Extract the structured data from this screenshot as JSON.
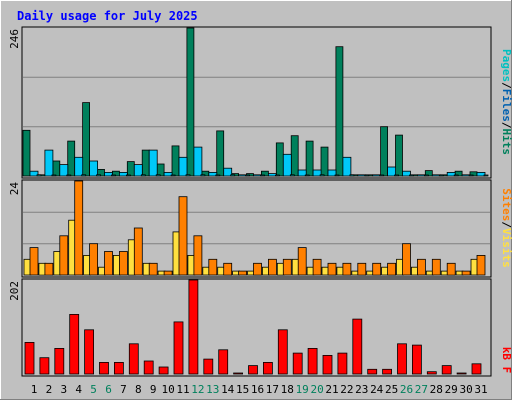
{
  "chart_data": {
    "type": "bar",
    "title": "Daily usage for July 2025",
    "categories": [
      "1",
      "2",
      "3",
      "4",
      "5",
      "6",
      "7",
      "8",
      "9",
      "10",
      "11",
      "12",
      "13",
      "14",
      "15",
      "16",
      "17",
      "18",
      "19",
      "20",
      "21",
      "22",
      "23",
      "24",
      "25",
      "26",
      "27",
      "28",
      "29",
      "30",
      "31"
    ],
    "weekend_days": [
      "5",
      "6",
      "12",
      "13",
      "19",
      "20",
      "26",
      "27"
    ],
    "panels": [
      {
        "name": "pages-files-hits",
        "ymax_label": "246",
        "ylim": [
          0,
          246
        ],
        "grid": true,
        "series": [
          {
            "name": "Hits",
            "color": "#00805c",
            "values": [
              76,
              2,
              25,
              58,
              122,
              11,
              8,
              24,
              43,
              20,
              50,
              246,
              8,
              75,
              4,
              4,
              8,
              55,
              67,
              58,
              48,
              215,
              2,
              2,
              82,
              68,
              2,
              9,
              2,
              8,
              7
            ]
          },
          {
            "name": "Files",
            "color": "#00c8f8",
            "values": [
              8,
              43,
              19,
              31,
              25,
              6,
              6,
              19,
              43,
              6,
              31,
              48,
              6,
              13,
              2,
              2,
              4,
              36,
              10,
              10,
              10,
              31,
              2,
              2,
              15,
              8,
              2,
              2,
              6,
              2,
              6
            ]
          },
          {
            "name": "Pages",
            "color": "#00c0c0",
            "values": [
              2,
              1,
              1,
              2,
              2,
              1,
              1,
              2,
              2,
              1,
              2,
              2,
              1,
              2,
              1,
              1,
              1,
              2,
              1,
              2,
              1,
              2,
              1,
              1,
              1,
              1,
              1,
              1,
              1,
              1,
              1
            ]
          }
        ]
      },
      {
        "name": "visits-sites",
        "ymax_label": "24",
        "ylim": [
          0,
          24
        ],
        "grid": true,
        "series": [
          {
            "name": "Visits",
            "color": "#ffe040",
            "values": [
              4,
              3,
              6,
              14,
              5,
              2,
              5,
              9,
              3,
              1,
              11,
              5,
              2,
              2,
              1,
              1,
              2,
              3,
              4,
              2,
              2,
              2,
              1,
              1,
              2,
              4,
              2,
              1,
              1,
              1,
              4
            ]
          },
          {
            "name": "Sites",
            "color": "#ff8000",
            "values": [
              7,
              3,
              10,
              24,
              8,
              6,
              6,
              12,
              3,
              1,
              20,
              10,
              4,
              3,
              1,
              3,
              4,
              4,
              7,
              4,
              3,
              3,
              3,
              3,
              3,
              8,
              4,
              4,
              3,
              1,
              5
            ]
          }
        ]
      },
      {
        "name": "kbytes",
        "ymax_label": "202",
        "ylim": [
          0,
          202
        ],
        "grid": false,
        "series": [
          {
            "name": "kB F",
            "color": "#ff0000",
            "values": [
              68,
              35,
              55,
              128,
              95,
              25,
              25,
              65,
              28,
              15,
              112,
              202,
              32,
              52,
              2,
              18,
              25,
              95,
              45,
              55,
              40,
              45,
              118,
              10,
              10,
              65,
              62,
              5,
              18,
              2,
              22
            ]
          }
        ]
      }
    ],
    "right_labels": {
      "top": [
        {
          "text": "Pages",
          "color": "#00c0c0"
        },
        {
          "text": "/",
          "color": "#000000"
        },
        {
          "text": "Files",
          "color": "#0060b0"
        },
        {
          "text": "/",
          "color": "#000000"
        },
        {
          "text": "Hits",
          "color": "#00805c"
        }
      ],
      "middle": [
        {
          "text": "Sites",
          "color": "#ff8000"
        },
        {
          "text": "/",
          "color": "#000000"
        },
        {
          "text": "Visits",
          "color": "#ffe040"
        }
      ],
      "bottom": [
        {
          "text": "kB F",
          "color": "#ff0000"
        }
      ]
    },
    "colors": {
      "background": "#c0c0c0",
      "title": "#0000ff",
      "weekday_label": "#000000",
      "weekend_label": "#00805c",
      "grid": "#808080"
    }
  }
}
